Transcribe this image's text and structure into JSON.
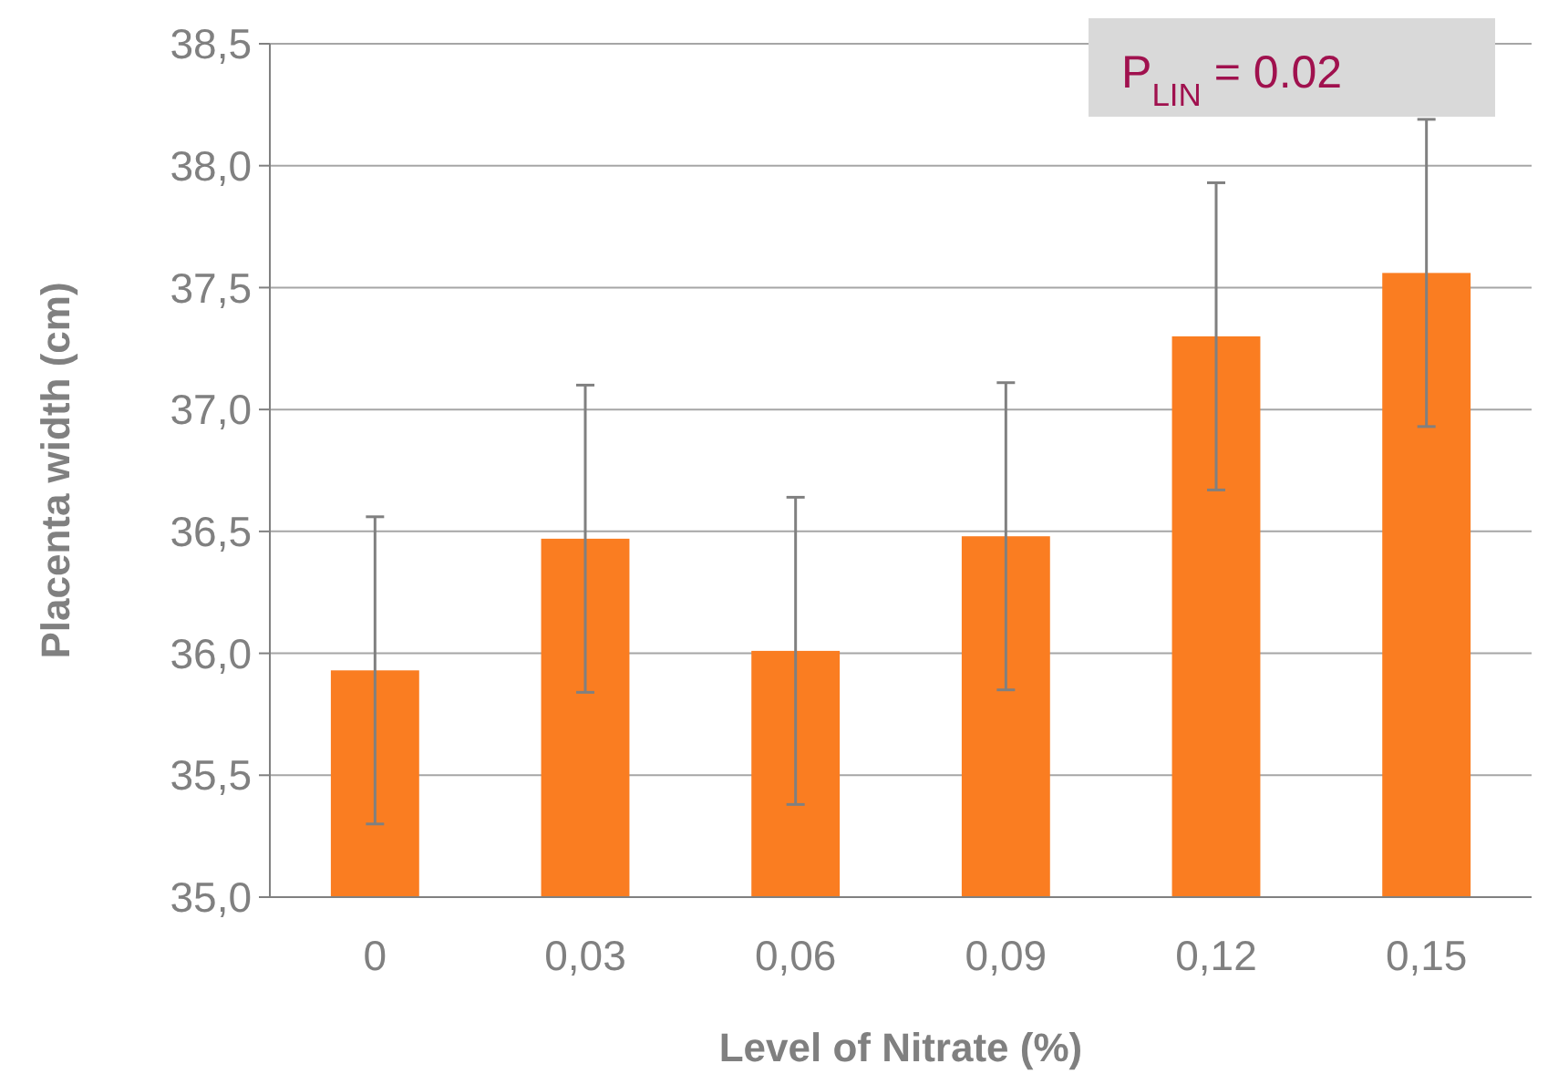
{
  "chart_data": {
    "type": "bar",
    "xlabel": "Level of Nitrate (%)",
    "ylabel": "Placenta width (cm)",
    "categories": [
      "0",
      "0,03",
      "0,06",
      "0,09",
      "0,12",
      "0,15"
    ],
    "values": [
      35.93,
      36.47,
      36.01,
      36.48,
      37.3,
      37.56
    ],
    "errors": [
      0.63,
      0.63,
      0.63,
      0.63,
      0.63,
      0.63
    ],
    "color": "#fa7d21",
    "ylim": [
      35,
      38.5
    ],
    "yticks": [
      {
        "value": 35,
        "label": "35,0"
      },
      {
        "value": 35.5,
        "label": "35,5"
      },
      {
        "value": 36,
        "label": "36,0"
      },
      {
        "value": 36.5,
        "label": "36,5"
      },
      {
        "value": 37,
        "label": "37,0"
      },
      {
        "value": 37.5,
        "label": "37,5"
      },
      {
        "value": 38,
        "label": "38,0"
      },
      {
        "value": 38.5,
        "label": "38,5"
      }
    ],
    "grid": "y",
    "annotations": [
      "P$_{LIN}$ = 0.02"
    ]
  }
}
